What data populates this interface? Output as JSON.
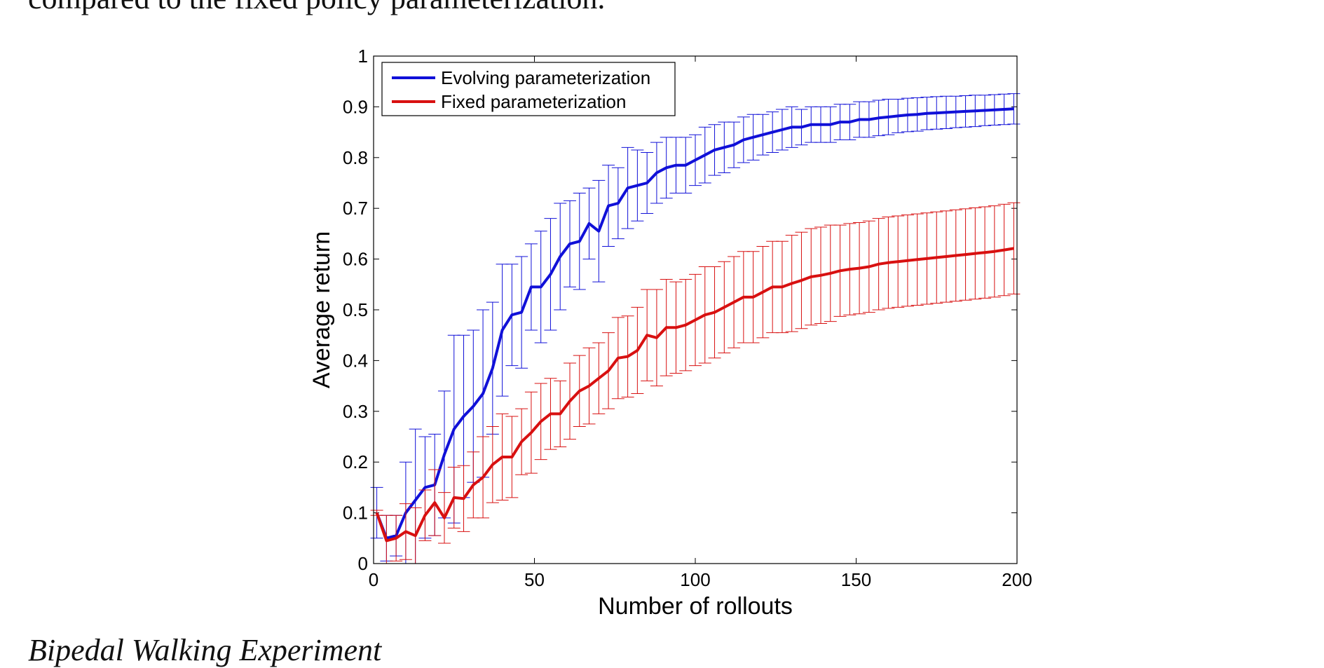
{
  "document": {
    "top_text": "compared to the fixed policy parameterization.",
    "bottom_text": "Bipedal Walking Experiment"
  },
  "chart_data": {
    "type": "line",
    "title": "",
    "xlabel": "Number of rollouts",
    "ylabel": "Average return",
    "xlim": [
      0,
      200
    ],
    "ylim": [
      0,
      1
    ],
    "xticks": [
      0,
      50,
      100,
      150,
      200
    ],
    "yticks": [
      0,
      0.1,
      0.2,
      0.3,
      0.4,
      0.5,
      0.6,
      0.7,
      0.8,
      0.9,
      1
    ],
    "grid": false,
    "legend_position": "top-left",
    "x": [
      1,
      4,
      7,
      10,
      13,
      16,
      19,
      22,
      25,
      28,
      31,
      34,
      37,
      40,
      43,
      46,
      49,
      52,
      55,
      58,
      61,
      64,
      67,
      70,
      73,
      76,
      79,
      82,
      85,
      88,
      91,
      94,
      97,
      100,
      103,
      106,
      109,
      112,
      115,
      118,
      121,
      124,
      127,
      130,
      133,
      136,
      139,
      142,
      145,
      148,
      151,
      154,
      157,
      160,
      163,
      166,
      169,
      172,
      175,
      178,
      181,
      184,
      187,
      190,
      193,
      196,
      199
    ],
    "series": [
      {
        "name": "Evolving parameterization",
        "color": "#1010d8",
        "values": [
          0.1,
          0.05,
          0.055,
          0.1,
          0.125,
          0.15,
          0.155,
          0.215,
          0.265,
          0.29,
          0.31,
          0.335,
          0.385,
          0.46,
          0.49,
          0.495,
          0.545,
          0.545,
          0.57,
          0.605,
          0.63,
          0.635,
          0.67,
          0.655,
          0.705,
          0.71,
          0.74,
          0.745,
          0.75,
          0.77,
          0.78,
          0.785,
          0.785,
          0.795,
          0.805,
          0.815,
          0.82,
          0.825,
          0.835,
          0.84,
          0.845,
          0.85,
          0.855,
          0.86,
          0.86,
          0.865,
          0.865,
          0.865,
          0.87,
          0.87,
          0.875,
          0.875,
          0.878,
          0.88,
          0.882,
          0.884,
          0.885,
          0.887,
          0.888,
          0.889,
          0.89,
          0.891,
          0.892,
          0.893,
          0.894,
          0.895,
          0.896
        ],
        "error": [
          0.05,
          0.045,
          0.04,
          0.1,
          0.14,
          0.1,
          0.1,
          0.125,
          0.185,
          0.16,
          0.15,
          0.165,
          0.13,
          0.13,
          0.1,
          0.11,
          0.085,
          0.11,
          0.11,
          0.105,
          0.085,
          0.095,
          0.07,
          0.1,
          0.08,
          0.07,
          0.08,
          0.07,
          0.06,
          0.06,
          0.06,
          0.055,
          0.055,
          0.05,
          0.055,
          0.05,
          0.05,
          0.045,
          0.045,
          0.045,
          0.04,
          0.04,
          0.04,
          0.04,
          0.035,
          0.035,
          0.035,
          0.035,
          0.035,
          0.035,
          0.035,
          0.035,
          0.035,
          0.035,
          0.033,
          0.033,
          0.033,
          0.032,
          0.032,
          0.032,
          0.031,
          0.031,
          0.031,
          0.03,
          0.03,
          0.03,
          0.03
        ]
      },
      {
        "name": "Fixed parameterization",
        "color": "#d81010",
        "values": [
          0.1,
          0.045,
          0.05,
          0.063,
          0.055,
          0.095,
          0.12,
          0.09,
          0.13,
          0.128,
          0.155,
          0.17,
          0.195,
          0.21,
          0.21,
          0.24,
          0.258,
          0.28,
          0.295,
          0.295,
          0.32,
          0.34,
          0.35,
          0.365,
          0.38,
          0.405,
          0.408,
          0.42,
          0.45,
          0.445,
          0.465,
          0.465,
          0.47,
          0.48,
          0.49,
          0.495,
          0.505,
          0.515,
          0.525,
          0.525,
          0.535,
          0.545,
          0.545,
          0.552,
          0.558,
          0.565,
          0.568,
          0.572,
          0.577,
          0.58,
          0.582,
          0.585,
          0.59,
          0.593,
          0.595,
          0.597,
          0.599,
          0.601,
          0.603,
          0.605,
          0.607,
          0.609,
          0.611,
          0.613,
          0.615,
          0.618,
          0.621
        ],
        "error": [
          0.005,
          0.05,
          0.045,
          0.055,
          0.055,
          0.05,
          0.065,
          0.05,
          0.06,
          0.065,
          0.065,
          0.08,
          0.075,
          0.085,
          0.08,
          0.065,
          0.08,
          0.075,
          0.07,
          0.065,
          0.075,
          0.07,
          0.075,
          0.07,
          0.075,
          0.08,
          0.08,
          0.085,
          0.09,
          0.095,
          0.095,
          0.09,
          0.09,
          0.09,
          0.095,
          0.09,
          0.09,
          0.09,
          0.09,
          0.09,
          0.09,
          0.09,
          0.09,
          0.095,
          0.095,
          0.095,
          0.095,
          0.095,
          0.09,
          0.09,
          0.09,
          0.09,
          0.09,
          0.09,
          0.09,
          0.09,
          0.09,
          0.09,
          0.09,
          0.09,
          0.09,
          0.09,
          0.09,
          0.09,
          0.09,
          0.09,
          0.09
        ]
      }
    ]
  }
}
